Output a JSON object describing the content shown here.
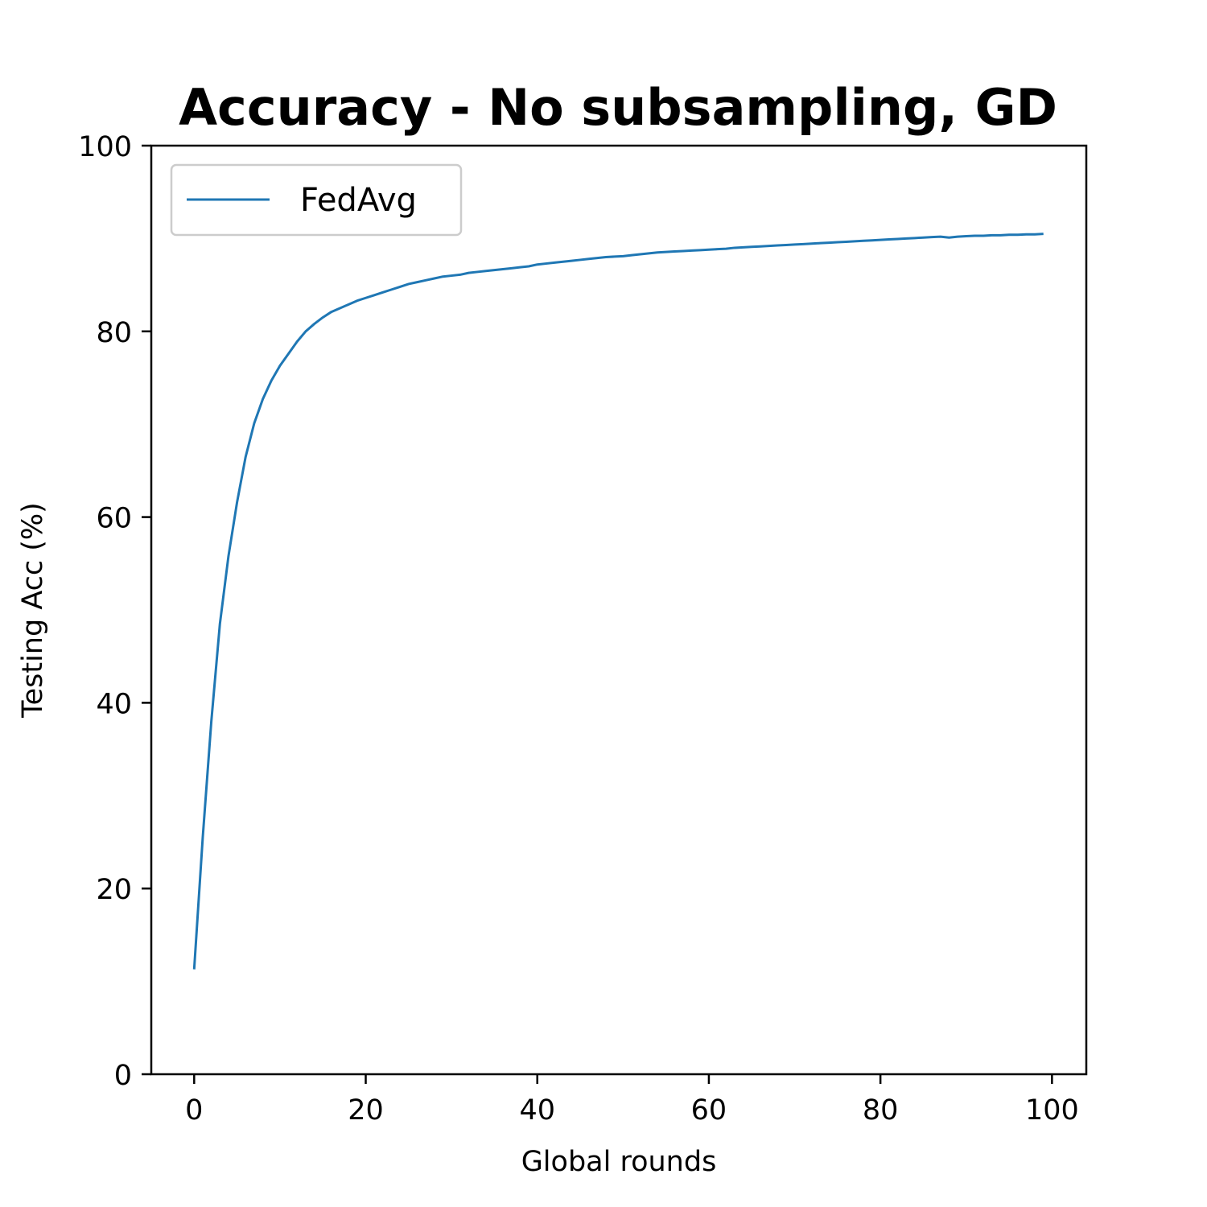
{
  "chart_data": {
    "type": "line",
    "title": "Accuracy - No subsampling, GD",
    "xlabel": "Global rounds",
    "ylabel": "Testing Acc (%)",
    "xlim": [
      -5,
      104
    ],
    "ylim": [
      0,
      100
    ],
    "xticks": [
      0,
      20,
      40,
      60,
      80,
      100
    ],
    "yticks": [
      0,
      20,
      40,
      60,
      80,
      100
    ],
    "grid": false,
    "legend_position": "upper-left",
    "colors": {
      "series": "#1f77b4",
      "axes": "#000000",
      "legend_border": "#cccccc"
    },
    "series": [
      {
        "name": "FedAvg",
        "x": [
          0,
          1,
          2,
          3,
          4,
          5,
          6,
          7,
          8,
          9,
          10,
          11,
          12,
          13,
          14,
          15,
          16,
          17,
          18,
          19,
          20,
          21,
          22,
          23,
          24,
          25,
          26,
          27,
          28,
          29,
          30,
          31,
          32,
          33,
          34,
          35,
          36,
          37,
          38,
          39,
          40,
          41,
          42,
          43,
          44,
          45,
          46,
          47,
          48,
          49,
          50,
          51,
          52,
          53,
          54,
          55,
          56,
          57,
          58,
          59,
          60,
          61,
          62,
          63,
          64,
          65,
          66,
          67,
          68,
          69,
          70,
          71,
          72,
          73,
          74,
          75,
          76,
          77,
          78,
          79,
          80,
          81,
          82,
          83,
          84,
          85,
          86,
          87,
          88,
          89,
          90,
          91,
          92,
          93,
          94,
          95,
          96,
          97,
          98,
          99
        ],
        "values": [
          11.3,
          25.5,
          38.0,
          48.5,
          55.8,
          61.6,
          66.5,
          70.1,
          72.7,
          74.7,
          76.3,
          77.6,
          78.9,
          80.0,
          80.8,
          81.5,
          82.1,
          82.5,
          82.9,
          83.3,
          83.6,
          83.9,
          84.2,
          84.5,
          84.8,
          85.1,
          85.3,
          85.5,
          85.7,
          85.9,
          86.0,
          86.1,
          86.3,
          86.4,
          86.5,
          86.6,
          86.7,
          86.8,
          86.9,
          87.0,
          87.2,
          87.3,
          87.4,
          87.5,
          87.6,
          87.7,
          87.8,
          87.9,
          88.0,
          88.05,
          88.1,
          88.2,
          88.3,
          88.4,
          88.5,
          88.55,
          88.6,
          88.65,
          88.7,
          88.75,
          88.8,
          88.85,
          88.9,
          89.0,
          89.05,
          89.1,
          89.15,
          89.2,
          89.25,
          89.3,
          89.35,
          89.4,
          89.45,
          89.5,
          89.55,
          89.6,
          89.65,
          89.7,
          89.75,
          89.8,
          89.85,
          89.9,
          89.95,
          90.0,
          90.05,
          90.1,
          90.15,
          90.2,
          90.1,
          90.2,
          90.25,
          90.3,
          90.3,
          90.35,
          90.35,
          90.4,
          90.4,
          90.45,
          90.45,
          90.5
        ]
      }
    ]
  }
}
